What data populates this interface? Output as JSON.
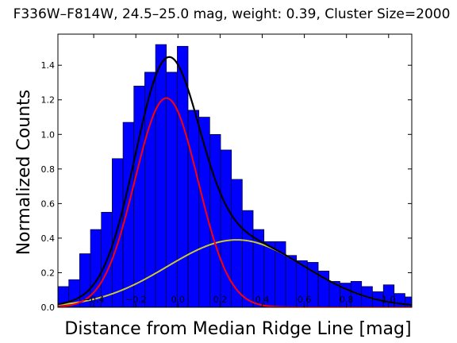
{
  "chart_data": {
    "type": "bar",
    "title": "F336W–F814W, 24.5–25.0 mag, weight: 0.39, Cluster Size=2000",
    "xlabel": "Distance from Median Ridge Line [mag]",
    "ylabel": "Normalized Counts",
    "xlim": [
      -0.57,
      1.11
    ],
    "ylim": [
      0.0,
      1.58
    ],
    "x_ticks": [
      -0.4,
      -0.2,
      0.0,
      0.2,
      0.4,
      0.6,
      0.8,
      1.0
    ],
    "x_tick_labels": [
      "−0.4",
      "−0.2",
      "0.0",
      "0.2",
      "0.4",
      "0.6",
      "0.8",
      "1.0"
    ],
    "y_ticks": [
      0.0,
      0.2,
      0.4,
      0.6,
      0.8,
      1.0,
      1.2,
      1.4
    ],
    "y_tick_labels": [
      "0.0",
      "0.2",
      "0.4",
      "0.6",
      "0.8",
      "1.0",
      "1.2",
      "1.4"
    ],
    "grid": false,
    "bar_color": "#0000ff",
    "bar_edge_color": "#000000",
    "bin_width": 0.0515,
    "bin_left_edges": [
      -0.57,
      -0.5185,
      -0.467,
      -0.4155,
      -0.364,
      -0.3125,
      -0.261,
      -0.2095,
      -0.158,
      -0.1065,
      -0.055,
      -0.0035,
      0.048,
      0.0995,
      0.151,
      0.2025,
      0.254,
      0.3055,
      0.357,
      0.4085,
      0.46,
      0.5115,
      0.563,
      0.6145,
      0.666,
      0.7175,
      0.769,
      0.8205,
      0.872,
      0.9235,
      0.975,
      1.0265,
      1.078
    ],
    "values": [
      0.12,
      0.16,
      0.31,
      0.45,
      0.55,
      0.86,
      1.07,
      1.28,
      1.36,
      1.52,
      1.36,
      1.51,
      1.14,
      1.1,
      1.0,
      0.91,
      0.74,
      0.56,
      0.45,
      0.38,
      0.38,
      0.3,
      0.27,
      0.26,
      0.21,
      0.15,
      0.14,
      0.15,
      0.12,
      0.09,
      0.13,
      0.08,
      0.06
    ],
    "curves": [
      {
        "color": "#000000",
        "component": "sum of the two"
      },
      {
        "color": "#ff0000",
        "amplitude": 1.21,
        "mu": -0.055,
        "sigma_left": 0.15,
        "sigma_right": 0.15
      },
      {
        "color": "#c8c832",
        "amplitude": 0.39,
        "mu": 0.28,
        "sigma_left": 0.33,
        "sigma_right": 0.32
      }
    ]
  }
}
